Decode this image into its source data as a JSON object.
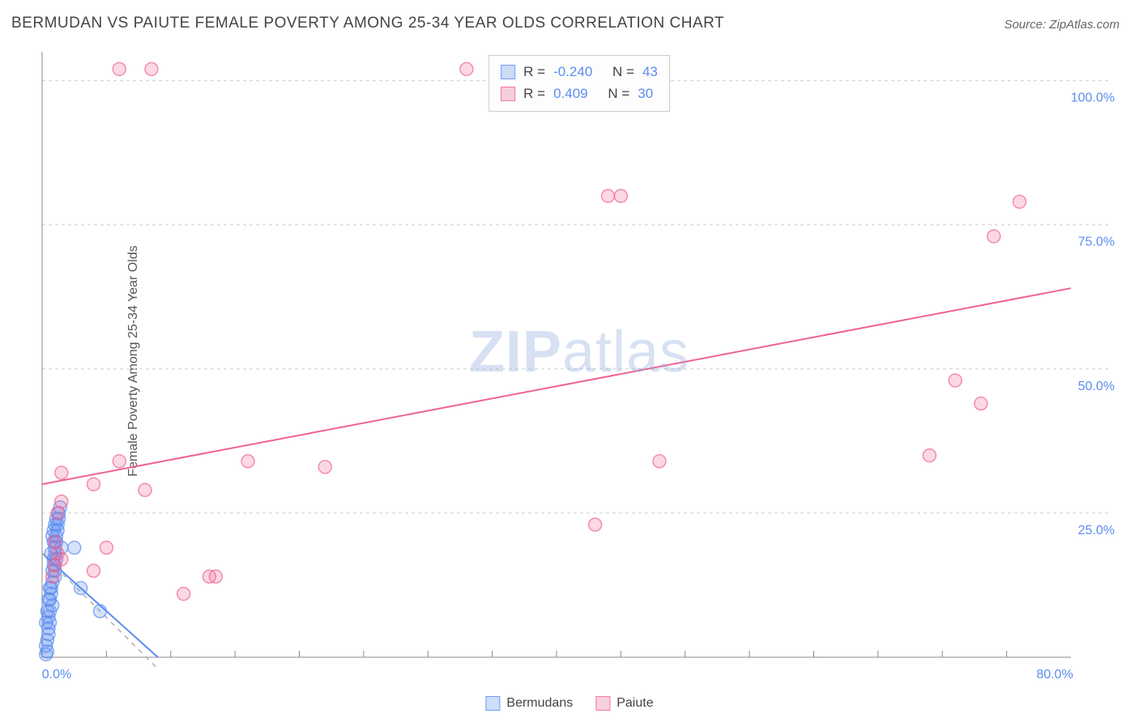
{
  "title": "BERMUDAN VS PAIUTE FEMALE POVERTY AMONG 25-34 YEAR OLDS CORRELATION CHART",
  "source": "Source: ZipAtlas.com",
  "y_axis_label": "Female Poverty Among 25-34 Year Olds",
  "watermark": {
    "left": "ZIP",
    "right": "atlas"
  },
  "chart": {
    "type": "scatter",
    "xlim": [
      0,
      80
    ],
    "ylim": [
      0,
      105
    ],
    "x_ticks": [
      0,
      80
    ],
    "x_tick_labels": [
      "0.0%",
      "80.0%"
    ],
    "x_minor_ticks": [
      5,
      10,
      15,
      20,
      25,
      30,
      35,
      40,
      45,
      50,
      55,
      60,
      65,
      70,
      75
    ],
    "y_ticks": [
      25,
      50,
      75,
      100
    ],
    "y_tick_labels": [
      "25.0%",
      "50.0%",
      "75.0%",
      "100.0%"
    ],
    "background_color": "#ffffff",
    "grid_color": "#d0d0d0",
    "marker_radius": 8,
    "series": [
      {
        "name": "Bermudans",
        "color_fill": "rgba(91,141,239,0.25)",
        "color_stroke": "rgba(91,141,239,0.7)",
        "R": "-0.240",
        "N": "43",
        "trend": {
          "x1": 0,
          "y1": 18,
          "x2": 9,
          "y2": 0,
          "dash_extend": true,
          "color": "#5b8def"
        },
        "points": [
          [
            0.3,
            2
          ],
          [
            0.4,
            3
          ],
          [
            0.5,
            5
          ],
          [
            0.5,
            7
          ],
          [
            0.6,
            8
          ],
          [
            0.6,
            10
          ],
          [
            0.7,
            11
          ],
          [
            0.7,
            12
          ],
          [
            0.8,
            13
          ],
          [
            0.8,
            15
          ],
          [
            0.9,
            16
          ],
          [
            0.9,
            17
          ],
          [
            1.0,
            18
          ],
          [
            1.0,
            19
          ],
          [
            1.1,
            20
          ],
          [
            1.1,
            21
          ],
          [
            1.2,
            22
          ],
          [
            1.2,
            23
          ],
          [
            1.3,
            24
          ],
          [
            1.3,
            25
          ],
          [
            1.4,
            26
          ],
          [
            0.5,
            4
          ],
          [
            0.6,
            6
          ],
          [
            0.8,
            9
          ],
          [
            1.0,
            14
          ],
          [
            1.5,
            19
          ],
          [
            2.5,
            19
          ],
          [
            0.4,
            1
          ],
          [
            0.3,
            0.5
          ],
          [
            0.7,
            18
          ],
          [
            0.9,
            20
          ],
          [
            1.1,
            17
          ],
          [
            1.0,
            15
          ],
          [
            0.6,
            12
          ],
          [
            0.5,
            10
          ],
          [
            0.4,
            8
          ],
          [
            0.3,
            6
          ],
          [
            3.0,
            12
          ],
          [
            4.5,
            8
          ],
          [
            0.8,
            21
          ],
          [
            0.9,
            22
          ],
          [
            1.0,
            23
          ],
          [
            1.1,
            24
          ]
        ]
      },
      {
        "name": "Paiute",
        "color_fill": "rgba(240,98,146,0.25)",
        "color_stroke": "rgba(240,98,146,0.7)",
        "R": "0.409",
        "N": "30",
        "trend": {
          "x1": 0,
          "y1": 30,
          "x2": 80,
          "y2": 64,
          "color": "#f06292"
        },
        "points": [
          [
            6,
            102
          ],
          [
            8.5,
            102
          ],
          [
            33,
            102
          ],
          [
            44,
            80
          ],
          [
            45,
            80
          ],
          [
            76,
            79
          ],
          [
            74,
            73
          ],
          [
            71,
            48
          ],
          [
            73,
            44
          ],
          [
            69,
            35
          ],
          [
            48,
            34
          ],
          [
            43,
            23
          ],
          [
            22,
            33
          ],
          [
            16,
            34
          ],
          [
            13,
            14
          ],
          [
            13.5,
            14
          ],
          [
            11,
            11
          ],
          [
            8,
            29
          ],
          [
            4,
            30
          ],
          [
            6,
            34
          ],
          [
            1.5,
            32
          ],
          [
            1.5,
            27
          ],
          [
            1.2,
            25
          ],
          [
            1.0,
            20
          ],
          [
            1.5,
            17
          ],
          [
            4,
            15
          ],
          [
            1.2,
            18
          ],
          [
            1.0,
            16
          ],
          [
            0.8,
            14
          ],
          [
            5,
            19
          ]
        ]
      }
    ]
  },
  "legend_stats": {
    "rows": [
      {
        "swatch": "blue",
        "r_label": "R =",
        "r_val": "-0.240",
        "n_label": "N =",
        "n_val": "43"
      },
      {
        "swatch": "pink",
        "r_label": "R =",
        "r_val": " 0.409",
        "n_label": "N =",
        "n_val": "30"
      }
    ]
  },
  "legend_bottom": {
    "items": [
      {
        "swatch": "blue",
        "label": "Bermudans"
      },
      {
        "swatch": "pink",
        "label": "Paiute"
      }
    ]
  }
}
